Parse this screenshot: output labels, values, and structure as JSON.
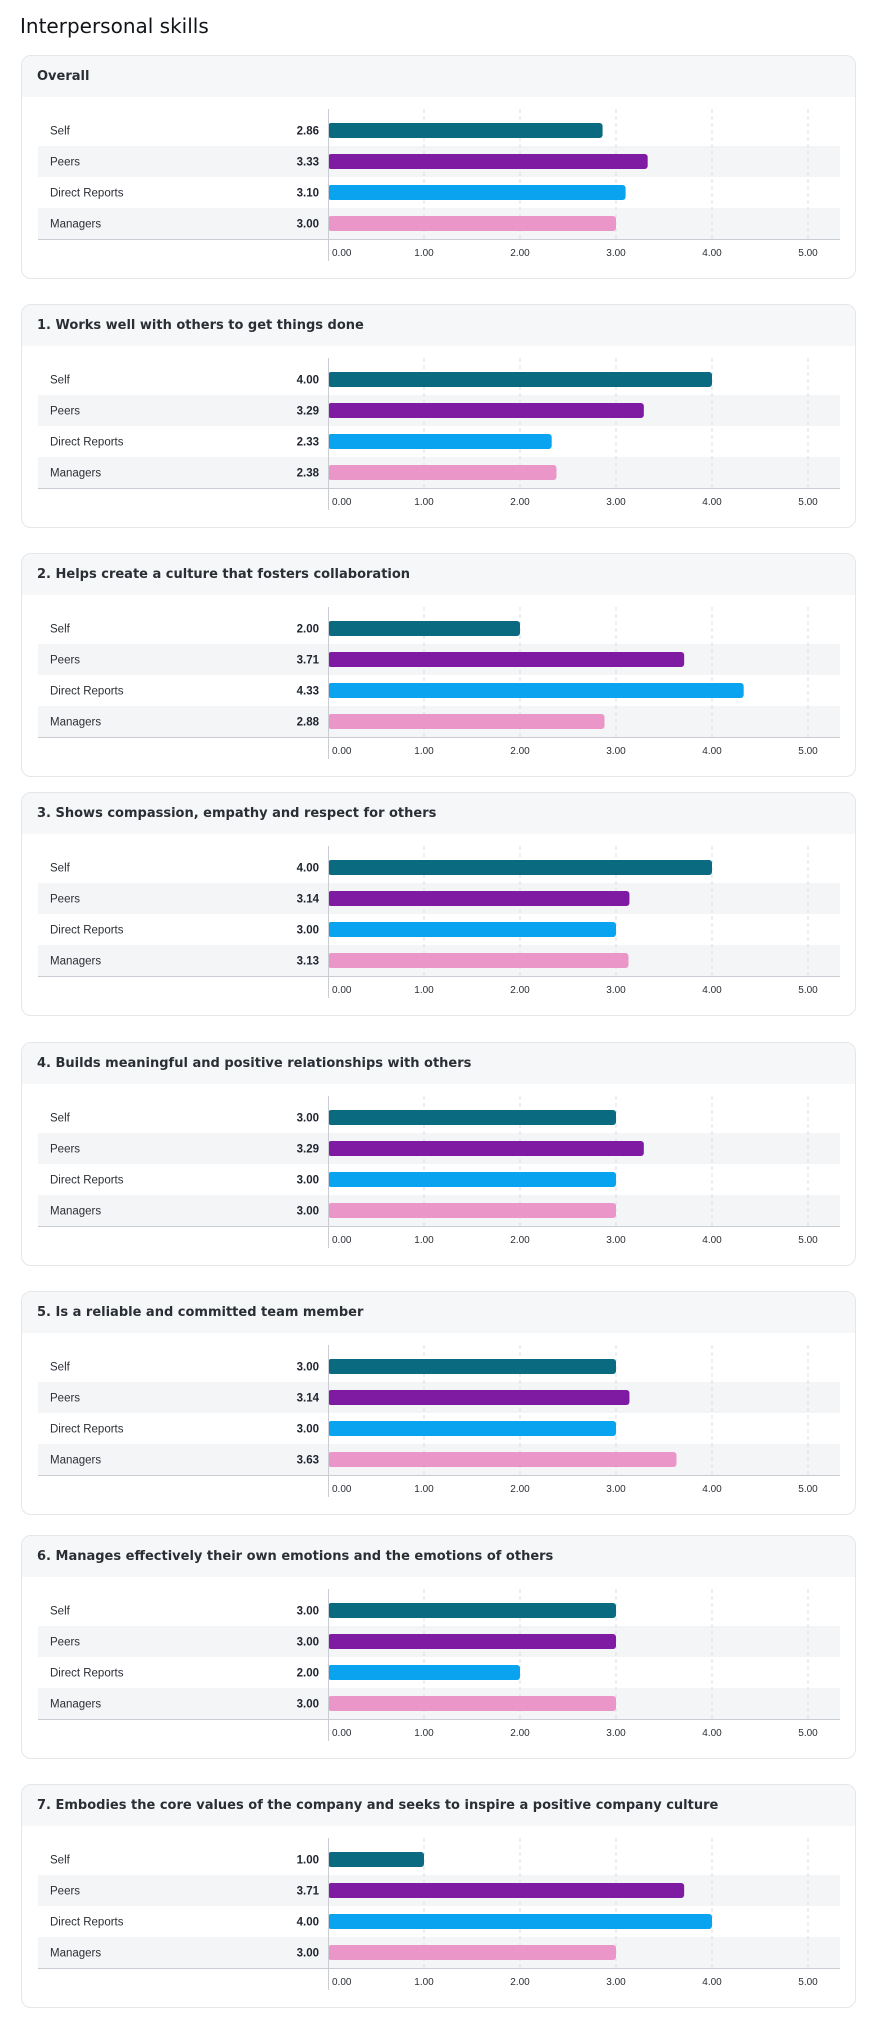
{
  "page": {
    "title": "Interpersonal skills"
  },
  "colors": {
    "Self": "#0a6a80",
    "Peers": "#7f1aa3",
    "Direct Reports": "#0aa3f0",
    "Managers": "#ea96c8"
  },
  "chart_data": [
    {
      "type": "bar",
      "orientation": "horizontal",
      "title": "Overall",
      "categories": [
        "Self",
        "Peers",
        "Direct Reports",
        "Managers"
      ],
      "values": [
        2.86,
        3.33,
        3.1,
        3.0
      ],
      "value_labels": [
        "2.86",
        "3.33",
        "3.10",
        "3.00"
      ],
      "xlim": [
        0,
        5
      ],
      "ticks": [
        "0.00",
        "1.00",
        "2.00",
        "3.00",
        "4.00",
        "5.00"
      ],
      "grid": true
    },
    {
      "type": "bar",
      "orientation": "horizontal",
      "title": "1. Works well with others to get things done",
      "categories": [
        "Self",
        "Peers",
        "Direct Reports",
        "Managers"
      ],
      "values": [
        4.0,
        3.29,
        2.33,
        2.38
      ],
      "value_labels": [
        "4.00",
        "3.29",
        "2.33",
        "2.38"
      ],
      "xlim": [
        0,
        5
      ],
      "ticks": [
        "0.00",
        "1.00",
        "2.00",
        "3.00",
        "4.00",
        "5.00"
      ],
      "grid": true
    },
    {
      "type": "bar",
      "orientation": "horizontal",
      "title": "2. Helps create a culture that fosters collaboration",
      "categories": [
        "Self",
        "Peers",
        "Direct Reports",
        "Managers"
      ],
      "values": [
        2.0,
        3.71,
        4.33,
        2.88
      ],
      "value_labels": [
        "2.00",
        "3.71",
        "4.33",
        "2.88"
      ],
      "xlim": [
        0,
        5
      ],
      "ticks": [
        "0.00",
        "1.00",
        "2.00",
        "3.00",
        "4.00",
        "5.00"
      ],
      "grid": true
    },
    {
      "type": "bar",
      "orientation": "horizontal",
      "title": "3. Shows compassion, empathy and respect for others",
      "categories": [
        "Self",
        "Peers",
        "Direct Reports",
        "Managers"
      ],
      "values": [
        4.0,
        3.14,
        3.0,
        3.13
      ],
      "value_labels": [
        "4.00",
        "3.14",
        "3.00",
        "3.13"
      ],
      "xlim": [
        0,
        5
      ],
      "ticks": [
        "0.00",
        "1.00",
        "2.00",
        "3.00",
        "4.00",
        "5.00"
      ],
      "grid": true
    },
    {
      "type": "bar",
      "orientation": "horizontal",
      "title": "4. Builds meaningful and positive relationships with others",
      "categories": [
        "Self",
        "Peers",
        "Direct Reports",
        "Managers"
      ],
      "values": [
        3.0,
        3.29,
        3.0,
        3.0
      ],
      "value_labels": [
        "3.00",
        "3.29",
        "3.00",
        "3.00"
      ],
      "xlim": [
        0,
        5
      ],
      "ticks": [
        "0.00",
        "1.00",
        "2.00",
        "3.00",
        "4.00",
        "5.00"
      ],
      "grid": true
    },
    {
      "type": "bar",
      "orientation": "horizontal",
      "title": "5. Is a reliable and committed team member",
      "categories": [
        "Self",
        "Peers",
        "Direct Reports",
        "Managers"
      ],
      "values": [
        3.0,
        3.14,
        3.0,
        3.63
      ],
      "value_labels": [
        "3.00",
        "3.14",
        "3.00",
        "3.63"
      ],
      "xlim": [
        0,
        5
      ],
      "ticks": [
        "0.00",
        "1.00",
        "2.00",
        "3.00",
        "4.00",
        "5.00"
      ],
      "grid": true
    },
    {
      "type": "bar",
      "orientation": "horizontal",
      "title": "6. Manages effectively their own emotions and the emotions of others",
      "categories": [
        "Self",
        "Peers",
        "Direct Reports",
        "Managers"
      ],
      "values": [
        3.0,
        3.0,
        2.0,
        3.0
      ],
      "value_labels": [
        "3.00",
        "3.00",
        "2.00",
        "3.00"
      ],
      "xlim": [
        0,
        5
      ],
      "ticks": [
        "0.00",
        "1.00",
        "2.00",
        "3.00",
        "4.00",
        "5.00"
      ],
      "grid": true
    },
    {
      "type": "bar",
      "orientation": "horizontal",
      "title": "7. Embodies the core values of the company and seeks to inspire a positive company culture",
      "categories": [
        "Self",
        "Peers",
        "Direct Reports",
        "Managers"
      ],
      "values": [
        1.0,
        3.71,
        4.0,
        3.0
      ],
      "value_labels": [
        "1.00",
        "3.71",
        "4.00",
        "3.00"
      ],
      "xlim": [
        0,
        5
      ],
      "ticks": [
        "0.00",
        "1.00",
        "2.00",
        "3.00",
        "4.00",
        "5.00"
      ],
      "grid": true
    }
  ]
}
